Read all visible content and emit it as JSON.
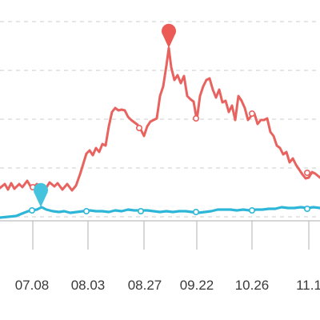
{
  "colors": {
    "red_series": "#e8635f",
    "blue_series": "#2eb6d8",
    "marker_red": "#ec5a55",
    "marker_blue": "#45c3dd",
    "grid": "#d6d6d6",
    "axis": "#bdbdbd",
    "tick_text": "#3a3a3a"
  },
  "chart_data": {
    "type": "line",
    "title": "",
    "xlabel": "",
    "ylabel": "",
    "grid": true,
    "x_ticks": [
      "07.08",
      "08.03",
      "08.27",
      "09.22",
      "10.26",
      "11.1"
    ],
    "series": [
      {
        "color": "#e8635f",
        "values": [
          [
            0,
            235
          ],
          [
            6,
            230
          ],
          [
            10,
            237
          ],
          [
            14,
            229
          ],
          [
            18,
            236
          ],
          [
            24,
            230
          ],
          [
            28,
            234
          ],
          [
            34,
            226
          ],
          [
            40,
            236
          ],
          [
            46,
            230
          ],
          [
            52,
            234
          ],
          [
            57,
            236
          ],
          [
            62,
            228
          ],
          [
            68,
            233
          ],
          [
            72,
            229
          ],
          [
            78,
            237
          ],
          [
            84,
            230
          ],
          [
            90,
            238
          ],
          [
            95,
            232
          ],
          [
            100,
            218
          ],
          [
            104,
            205
          ],
          [
            108,
            192
          ],
          [
            112,
            188
          ],
          [
            116,
            194
          ],
          [
            120,
            185
          ],
          [
            124,
            190
          ],
          [
            128,
            180
          ],
          [
            132,
            182
          ],
          [
            136,
            158
          ],
          [
            140,
            140
          ],
          [
            144,
            135
          ],
          [
            148,
            138
          ],
          [
            152,
            137
          ],
          [
            156,
            138
          ],
          [
            160,
            146
          ],
          [
            164,
            150
          ],
          [
            168,
            153
          ],
          [
            172,
            156
          ],
          [
            176,
            162
          ],
          [
            180,
            170
          ],
          [
            184,
            158
          ],
          [
            188,
            152
          ],
          [
            192,
            150
          ],
          [
            196,
            148
          ],
          [
            200,
            120
          ],
          [
            204,
            108
          ],
          [
            208,
            82
          ],
          [
            211,
            60
          ],
          [
            214,
            84
          ],
          [
            218,
            100
          ],
          [
            222,
            94
          ],
          [
            226,
            104
          ],
          [
            230,
            95
          ],
          [
            234,
            120
          ],
          [
            238,
            124
          ],
          [
            242,
            127
          ],
          [
            246,
            150
          ],
          [
            250,
            120
          ],
          [
            254,
            108
          ],
          [
            258,
            100
          ],
          [
            262,
            98
          ],
          [
            266,
            112
          ],
          [
            270,
            122
          ],
          [
            274,
            112
          ],
          [
            278,
            128
          ],
          [
            282,
            126
          ],
          [
            286,
            140
          ],
          [
            290,
            132
          ],
          [
            294,
            150
          ],
          [
            298,
            120
          ],
          [
            302,
            126
          ],
          [
            306,
            135
          ],
          [
            310,
            150
          ],
          [
            314,
            145
          ],
          [
            318,
            142
          ],
          [
            322,
            155
          ],
          [
            326,
            150
          ],
          [
            330,
            150
          ],
          [
            334,
            148
          ],
          [
            338,
            165
          ],
          [
            342,
            170
          ],
          [
            346,
            182
          ],
          [
            350,
            185
          ],
          [
            354,
            193
          ],
          [
            358,
            190
          ],
          [
            362,
            203
          ],
          [
            366,
            198
          ],
          [
            370,
            206
          ],
          [
            374,
            212
          ],
          [
            378,
            218
          ],
          [
            382,
            223
          ],
          [
            386,
            222
          ],
          [
            390,
            215
          ],
          [
            394,
            217
          ],
          [
            400,
            222
          ]
        ],
        "points": [
          [
            41,
            234
          ],
          [
            174,
            160
          ],
          [
            245,
            148
          ],
          [
            315,
            142
          ],
          [
            384,
            216
          ]
        ]
      },
      {
        "color": "#2eb6d8",
        "values": [
          [
            0,
            272
          ],
          [
            10,
            271
          ],
          [
            20,
            270
          ],
          [
            30,
            266
          ],
          [
            38,
            263
          ],
          [
            46,
            262
          ],
          [
            52,
            259
          ],
          [
            58,
            262
          ],
          [
            66,
            264
          ],
          [
            74,
            265
          ],
          [
            80,
            264
          ],
          [
            88,
            266
          ],
          [
            96,
            265
          ],
          [
            104,
            264
          ],
          [
            112,
            263
          ],
          [
            120,
            264
          ],
          [
            128,
            264
          ],
          [
            136,
            265
          ],
          [
            144,
            263
          ],
          [
            152,
            264
          ],
          [
            160,
            262
          ],
          [
            168,
            263
          ],
          [
            176,
            263
          ],
          [
            184,
            263
          ],
          [
            192,
            264
          ],
          [
            200,
            265
          ],
          [
            208,
            264
          ],
          [
            216,
            265
          ],
          [
            224,
            264
          ],
          [
            232,
            264
          ],
          [
            240,
            265
          ],
          [
            248,
            266
          ],
          [
            256,
            265
          ],
          [
            264,
            264
          ],
          [
            272,
            262
          ],
          [
            280,
            262
          ],
          [
            288,
            262
          ],
          [
            296,
            263
          ],
          [
            304,
            262
          ],
          [
            312,
            263
          ],
          [
            320,
            262
          ],
          [
            328,
            262
          ],
          [
            336,
            261
          ],
          [
            344,
            261
          ],
          [
            352,
            259
          ],
          [
            360,
            260
          ],
          [
            368,
            260
          ],
          [
            376,
            259
          ],
          [
            384,
            260
          ],
          [
            392,
            259
          ],
          [
            400,
            260
          ]
        ],
        "points": [
          [
            40,
            263
          ],
          [
            108,
            264
          ],
          [
            176,
            264
          ],
          [
            245,
            265
          ],
          [
            315,
            263
          ],
          [
            384,
            261
          ]
        ]
      }
    ],
    "markers": [
      {
        "series": 0,
        "at": [
          211,
          60
        ]
      },
      {
        "series": 1,
        "at": [
          51,
          259
        ]
      }
    ]
  }
}
